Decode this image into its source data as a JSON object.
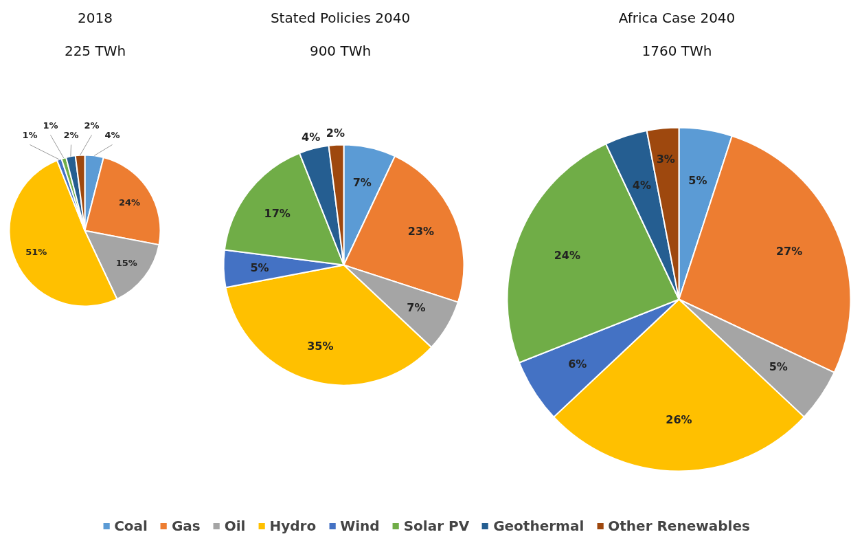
{
  "chart_data": [
    {
      "type": "pie",
      "title": "2018",
      "subtitle": "225 TWh",
      "categories": [
        "Coal",
        "Gas",
        "Oil",
        "Hydro",
        "Wind",
        "Solar PV",
        "Geothermal",
        "Other Renewables"
      ],
      "values": [
        4,
        24,
        15,
        51,
        1,
        1,
        2,
        2
      ],
      "value_labels": [
        "4%",
        "24%",
        "15%",
        "51%",
        "1%",
        "1%",
        "2%",
        "2%"
      ],
      "colors": [
        "#5b9bd5",
        "#ed7d31",
        "#a5a5a5",
        "#ffc000",
        "#4472c4",
        "#70ad47",
        "#255e91",
        "#9e480e"
      ],
      "legend": "bottom"
    },
    {
      "type": "pie",
      "title": "Stated Policies 2040",
      "subtitle": "900 TWh",
      "categories": [
        null,
        null,
        null,
        null,
        null,
        null,
        null,
        null
      ],
      "values": [
        7,
        23,
        7,
        35,
        5,
        17,
        4,
        2
      ],
      "value_labels": [
        "7%",
        "23%",
        "7%",
        "35%",
        "5%",
        "17%",
        "4%",
        "2%"
      ],
      "colors": [
        "#5b9bd5",
        "#ed7d31",
        "#a5a5a5",
        "#ffc000",
        "#4472c4",
        "#70ad47",
        "#255e91",
        "#9e480e"
      ]
    },
    {
      "type": "pie",
      "title": "Africa Case 2040",
      "subtitle": "1760 TWh",
      "categories": [
        null,
        null,
        null,
        null,
        null,
        null,
        null,
        null
      ],
      "values": [
        5,
        27,
        5,
        26,
        6,
        24,
        4,
        3
      ],
      "value_labels": [
        "5%",
        "27%",
        "5%",
        "26%",
        "6%",
        "24%",
        "4%",
        "3%"
      ],
      "colors": [
        "#5b9bd5",
        "#ed7d31",
        "#a5a5a5",
        "#ffc000",
        "#4472c4",
        "#70ad47",
        "#255e91",
        "#9e480e"
      ]
    }
  ]
}
